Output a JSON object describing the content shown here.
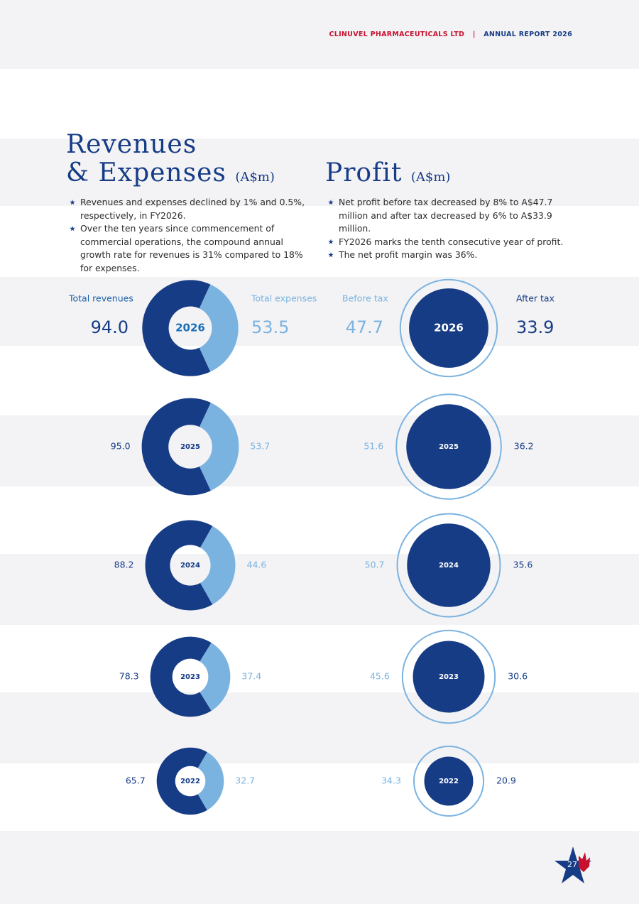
{
  "header": {
    "company": "CLINUVEL PHARMACEUTICALS LTD",
    "separator": "|",
    "report": "ANNUAL REPORT 2026"
  },
  "revenues_expenses": {
    "title": [
      "Revenues",
      "& Expenses"
    ],
    "unit": "(A$m)",
    "bullets": [
      "Revenues and expenses declined by 1% and 0.5%, respectively, in FY2026.",
      "Over the ten years since commencement of commercial operations, the compound annual growth rate for revenues is 31% compared to 18% for expenses."
    ],
    "revenue_label": "Total revenues",
    "expense_label": "Total expenses",
    "years": [
      "2026",
      "2025",
      "2024",
      "2023",
      "2022"
    ],
    "revenues": [
      94.0,
      95.0,
      88.2,
      78.3,
      65.7
    ],
    "revenue_labels": [
      "94.0",
      "95.0",
      "88.2",
      "78.3",
      "65.7"
    ],
    "expenses": [
      53.5,
      53.7,
      44.6,
      37.4,
      32.7
    ],
    "expense_labels": [
      "53.5",
      "53.7",
      "44.6",
      "37.4",
      "32.7"
    ],
    "revenue_color": "#173c86",
    "expense_color": "#7bb3e0"
  },
  "profit": {
    "title": "Profit",
    "unit": "(A$m)",
    "bullets": [
      "Net profit before tax decreased by 8% to A$47.7 million and after tax decreased by 6% to A$33.9 million.",
      "FY2026 marks the tenth consecutive year of profit.",
      "The net profit margin was 36%."
    ],
    "before_tax_label": "Before tax",
    "after_tax_label": "After tax",
    "years": [
      "2026",
      "2025",
      "2024",
      "2023",
      "2022"
    ],
    "before_tax": [
      47.7,
      51.6,
      50.7,
      45.6,
      34.3
    ],
    "before_tax_labels": [
      "47.7",
      "51.6",
      "50.7",
      "45.6",
      "34.3"
    ],
    "after_tax": [
      33.9,
      36.2,
      35.6,
      30.6,
      20.9
    ],
    "after_tax_labels": [
      "33.9",
      "36.2",
      "35.6",
      "30.6",
      "20.9"
    ],
    "before_tax_color": "#7bb3e0",
    "after_tax_color": "#173c86"
  },
  "page_number": "27"
}
